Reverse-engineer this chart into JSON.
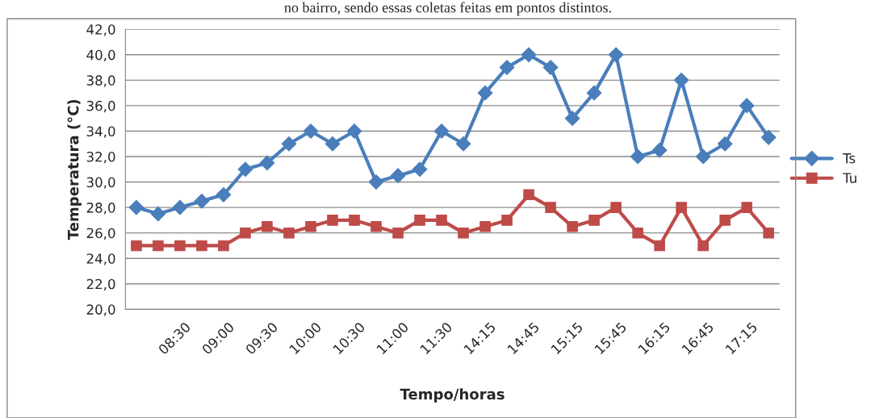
{
  "chart_data": {
    "type": "line",
    "annotations": [
      "no bairro, sendo essas coletas feitas em pontos distintos."
    ],
    "xlabel": "Tempo/horas",
    "ylabel": "Temperatura (°C)",
    "categories": [
      null,
      null,
      "08:30",
      null,
      "09:00",
      null,
      "09:30",
      null,
      "10:00",
      null,
      "10:30",
      null,
      "11:00",
      null,
      "11:30",
      null,
      "14:15",
      null,
      "14:45",
      null,
      "15:15",
      null,
      "15:45",
      null,
      "16:15",
      null,
      "16:45",
      null,
      "17:15",
      null
    ],
    "series": [
      {
        "name": "Ts",
        "color": "#4a7ebb",
        "marker": "diamond",
        "values": [
          28,
          27.5,
          28,
          28.5,
          29,
          31,
          31.5,
          33,
          34,
          33,
          34,
          30,
          30.5,
          31,
          34,
          33,
          37,
          39,
          40,
          39,
          35,
          37,
          40,
          32,
          32.5,
          38,
          32,
          33,
          36,
          33.5
        ]
      },
      {
        "name": "Tu",
        "color": "#be4b48",
        "marker": "square",
        "values": [
          25,
          25,
          25,
          25,
          25,
          26,
          26.5,
          26,
          26.5,
          27,
          27,
          26.5,
          26,
          27,
          27,
          26,
          26.5,
          27,
          29,
          28,
          26.5,
          27,
          28,
          26,
          25,
          28,
          25,
          27,
          28,
          26
        ]
      }
    ],
    "ylim": [
      20,
      42
    ],
    "yticks": [
      {
        "value": 20,
        "label": "20,0"
      },
      {
        "value": 22,
        "label": "22,0"
      },
      {
        "value": 24,
        "label": "24,0"
      },
      {
        "value": 26,
        "label": "26,0"
      },
      {
        "value": 28,
        "label": "28,0"
      },
      {
        "value": 30,
        "label": "30,0"
      },
      {
        "value": 32,
        "label": "32,0"
      },
      {
        "value": 34,
        "label": "34,0"
      },
      {
        "value": 36,
        "label": "36,0"
      },
      {
        "value": 38,
        "label": "38,0"
      },
      {
        "value": 40,
        "label": "40,0"
      },
      {
        "value": 42,
        "label": "42,0"
      }
    ],
    "grid": "y",
    "legend": "right",
    "line_style": "solid"
  }
}
